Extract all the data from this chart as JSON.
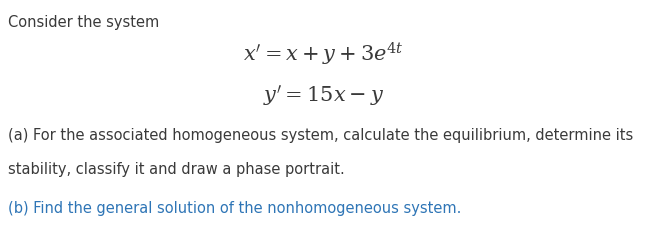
{
  "title_text": "Consider the system",
  "title_color": "#3a3a3a",
  "title_fontsize": 10.5,
  "eq1_latex": "$x' = x + y + 3e^{4t}$",
  "eq2_latex": "$y' = 15x - y$",
  "part_a_line1": "(a) For the associated homogeneous system, calculate the equilibrium, determine its",
  "part_a_line2": "stability, classify it and draw a phase portrait.",
  "part_b": "(b) Find the general solution of the nonhomogeneous system.",
  "text_color": "#3a3a3a",
  "blue_color": "#2E75B6",
  "body_fontsize": 10.5,
  "math_fontsize": 15,
  "bg_color": "#ffffff"
}
